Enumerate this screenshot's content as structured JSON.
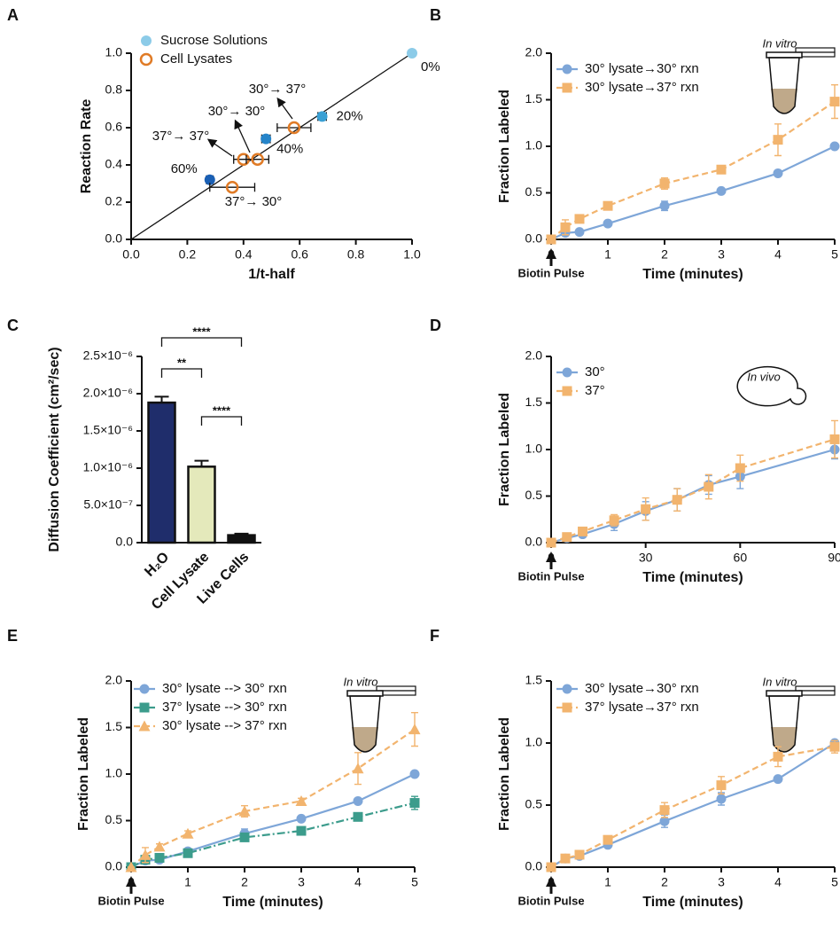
{
  "chart_data": [
    {
      "type": "scatter",
      "panel": "A",
      "xlabel": "1/t-half",
      "ylabel": "Reaction Rate",
      "xlim": [
        0,
        1.0
      ],
      "ylim": [
        0,
        1.0
      ],
      "xticks": [
        {
          "value": 0,
          "label": "0.0"
        },
        0.2,
        0.4,
        0.6,
        0.8,
        {
          "value": 1,
          "label": "1.0"
        }
      ],
      "yticks": [
        {
          "value": 0,
          "label": "0.0"
        },
        0.2,
        0.4,
        0.6,
        0.8,
        {
          "value": 1,
          "label": "1.0"
        }
      ],
      "series": [
        {
          "name": "Sucrose Solutions",
          "color": "#8ccbe8",
          "colors": [
            "#8ccbe8",
            "#3aa0d4",
            "#2584c9",
            "#1a5fb4"
          ],
          "x": [
            1.0,
            0.68,
            0.48,
            0.28
          ],
          "values": [
            1.0,
            0.66,
            0.54,
            0.32
          ],
          "xerr": [
            0.005,
            0.015,
            0.015,
            0.012
          ],
          "labels": [
            "0%",
            "20%",
            "40%",
            "60%"
          ]
        },
        {
          "name": "Cell Lysates",
          "color": "#e07b26",
          "x": [
            0.58,
            0.4,
            0.45,
            0.36
          ],
          "values": [
            0.6,
            0.43,
            0.43,
            0.28
          ],
          "xerr": [
            0.06,
            0.035,
            0.04,
            0.08
          ]
        }
      ],
      "annotations": [
        "30°→ 37°",
        "30°→ 30°",
        "37°→ 37°",
        "37°→ 30°"
      ]
    },
    {
      "type": "line",
      "panel": "B",
      "xlabel": "Time (minutes)",
      "ylabel": "Fraction Labeled",
      "pulse_label": "Biotin Pulse",
      "inset_label": "In vitro",
      "xlim": [
        0,
        5
      ],
      "ylim": [
        0,
        2.0
      ],
      "xticks": [
        0,
        1,
        2,
        3,
        4,
        5
      ],
      "yticks": [
        {
          "value": 0,
          "label": "0.0"
        },
        0.5,
        {
          "value": 1,
          "label": "1.0"
        },
        1.5,
        {
          "value": 2,
          "label": "2.0"
        }
      ],
      "x": [
        0,
        0.25,
        0.5,
        1,
        2,
        3,
        4,
        5
      ],
      "series": [
        {
          "name": "30° lysate→30° rxn",
          "color": "#7ea6d8",
          "marker": "circle",
          "dash": "solid",
          "values": [
            0,
            0.07,
            0.08,
            0.17,
            0.36,
            0.52,
            0.71,
            1.0
          ],
          "errors": [
            0,
            0.02,
            0.02,
            0.02,
            0.05,
            0.02,
            0.02,
            0.02
          ]
        },
        {
          "name": "30° lysate→37° rxn",
          "color": "#f2b46e",
          "marker": "square",
          "dash": "dashed",
          "values": [
            0,
            0.13,
            0.22,
            0.36,
            0.6,
            0.75,
            1.07,
            1.48
          ],
          "errors": [
            0,
            0.08,
            0.03,
            0.03,
            0.06,
            0.03,
            0.17,
            0.18
          ]
        }
      ]
    },
    {
      "type": "bar",
      "panel": "C",
      "ylabel": "Diffusion Coefficient (cm²/sec)",
      "categories": [
        "H₂O",
        "Cell Lysate",
        "Live Cells"
      ],
      "values": [
        1.88e-06,
        1.02e-06,
        1e-07
      ],
      "errors": [
        8e-08,
        8e-08,
        2e-08
      ],
      "colors": [
        "#1f2d6b",
        "#e4e9bb",
        "#111111"
      ],
      "ylim": [
        0,
        2.5e-06
      ],
      "yticks": [
        {
          "value": 0,
          "label": "0.0"
        },
        {
          "value": 5e-07,
          "label": "5.0×10⁻⁷"
        },
        {
          "value": 1e-06,
          "label": "1.0×10⁻⁶"
        },
        {
          "value": 1.5e-06,
          "label": "1.5×10⁻⁶"
        },
        {
          "value": 2e-06,
          "label": "2.0×10⁻⁶"
        },
        {
          "value": 2.5e-06,
          "label": "2.5×10⁻⁶"
        }
      ],
      "significance_labels": [
        "****",
        "**",
        "****"
      ]
    },
    {
      "type": "line",
      "panel": "D",
      "xlabel": "Time (minutes)",
      "ylabel": "Fraction Labeled",
      "pulse_label": "Biotin Pulse",
      "inset_label": "In vivo",
      "xlim": [
        0,
        90
      ],
      "ylim": [
        0,
        2.0
      ],
      "xticks": [
        0,
        30,
        60,
        90
      ],
      "yticks": [
        {
          "value": 0,
          "label": "0.0"
        },
        0.5,
        {
          "value": 1,
          "label": "1.0"
        },
        1.5,
        {
          "value": 2,
          "label": "2.0"
        }
      ],
      "x": [
        0,
        5,
        10,
        20,
        30,
        40,
        50,
        60,
        90
      ],
      "series": [
        {
          "name": "30°",
          "color": "#7ea6d8",
          "marker": "circle",
          "dash": "solid",
          "values": [
            0,
            0.05,
            0.09,
            0.2,
            0.34,
            0.46,
            0.62,
            0.71,
            1.0
          ],
          "errors": [
            0,
            0.02,
            0.03,
            0.07,
            0.1,
            0.12,
            0.1,
            0.13,
            0.1
          ]
        },
        {
          "name": "37°",
          "color": "#f2b46e",
          "marker": "square",
          "dash": "dashed",
          "values": [
            0,
            0.06,
            0.12,
            0.24,
            0.36,
            0.46,
            0.6,
            0.8,
            1.11
          ],
          "errors": [
            0,
            0.02,
            0.04,
            0.06,
            0.12,
            0.12,
            0.13,
            0.14,
            0.2
          ]
        }
      ]
    },
    {
      "type": "line",
      "panel": "E",
      "xlabel": "Time (minutes)",
      "ylabel": "Fraction Labeled",
      "pulse_label": "Biotin Pulse",
      "inset_label": "In vitro",
      "xlim": [
        0,
        5
      ],
      "ylim": [
        0,
        2.0
      ],
      "xticks": [
        0,
        1,
        2,
        3,
        4,
        5
      ],
      "yticks": [
        {
          "value": 0,
          "label": "0.0"
        },
        0.5,
        {
          "value": 1,
          "label": "1.0"
        },
        1.5,
        {
          "value": 2,
          "label": "2.0"
        }
      ],
      "x": [
        0,
        0.25,
        0.5,
        1,
        2,
        3,
        4,
        5
      ],
      "series": [
        {
          "name": "30° lysate --> 30° rxn",
          "color": "#7ea6d8",
          "marker": "circle",
          "dash": "solid",
          "values": [
            0,
            0.07,
            0.08,
            0.17,
            0.36,
            0.52,
            0.71,
            1.0
          ],
          "errors": [
            0,
            0.02,
            0.02,
            0.02,
            0.05,
            0.02,
            0.02,
            0.02
          ]
        },
        {
          "name": "37° lysate --> 30° rxn",
          "color": "#3c9c8c",
          "marker": "square",
          "dash": "dashdot",
          "values": [
            0,
            0.08,
            0.1,
            0.15,
            0.32,
            0.39,
            0.54,
            0.69
          ],
          "errors": [
            0,
            0.03,
            0.02,
            0.02,
            0.03,
            0.02,
            0.03,
            0.07
          ]
        },
        {
          "name": "30° lysate --> 37° rxn",
          "color": "#f2b46e",
          "marker": "triangle",
          "dash": "dashed",
          "values": [
            0,
            0.13,
            0.22,
            0.36,
            0.6,
            0.71,
            1.06,
            1.48
          ],
          "errors": [
            0,
            0.08,
            0.03,
            0.03,
            0.06,
            0.03,
            0.17,
            0.18
          ]
        }
      ]
    },
    {
      "type": "line",
      "panel": "F",
      "xlabel": "Time (minutes)",
      "ylabel": "Fraction Labeled",
      "pulse_label": "Biotin Pulse",
      "inset_label": "In vitro",
      "xlim": [
        0,
        5
      ],
      "ylim": [
        0,
        1.5
      ],
      "xticks": [
        0,
        1,
        2,
        3,
        4,
        5
      ],
      "yticks": [
        {
          "value": 0,
          "label": "0.0"
        },
        0.5,
        {
          "value": 1,
          "label": "1.0"
        },
        1.5
      ],
      "x": [
        0,
        0.25,
        0.5,
        1,
        2,
        3,
        4,
        5
      ],
      "series": [
        {
          "name": "30° lysate→30° rxn",
          "color": "#7ea6d8",
          "marker": "circle",
          "dash": "solid",
          "values": [
            0,
            0.07,
            0.09,
            0.18,
            0.37,
            0.55,
            0.71,
            1.0
          ],
          "errors": [
            0,
            0.02,
            0.02,
            0.02,
            0.05,
            0.05,
            0.02,
            0.02
          ]
        },
        {
          "name": "37° lysate→37° rxn",
          "color": "#f2b46e",
          "marker": "square",
          "dash": "dashed",
          "values": [
            0,
            0.07,
            0.1,
            0.22,
            0.46,
            0.66,
            0.89,
            0.97
          ],
          "errors": [
            0,
            0.02,
            0.02,
            0.03,
            0.06,
            0.07,
            0.08,
            0.05
          ]
        }
      ]
    }
  ]
}
